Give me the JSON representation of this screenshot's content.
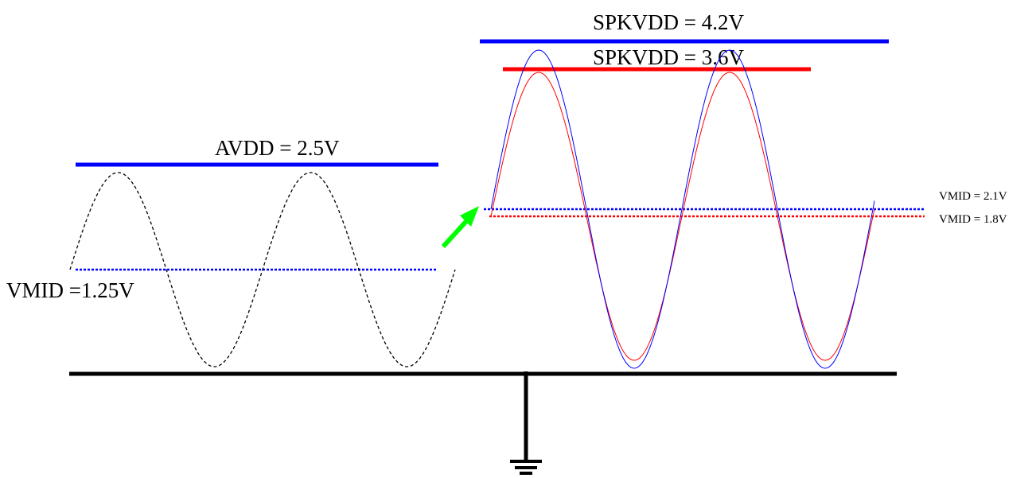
{
  "labels": {
    "avdd": "AVDD = 2.5V",
    "vmid_left": "VMID =1.25V",
    "spkvdd_high": "SPKVDD = 4.2V",
    "spkvdd_low": "SPKVDD = 3.6V",
    "vmid_high": "VMID = 2.1V",
    "vmid_low": "VMID = 1.8V"
  },
  "colors": {
    "blue": "#0000ff",
    "red": "#ff0000",
    "black": "#000000",
    "arrow": "#00ff00"
  }
}
